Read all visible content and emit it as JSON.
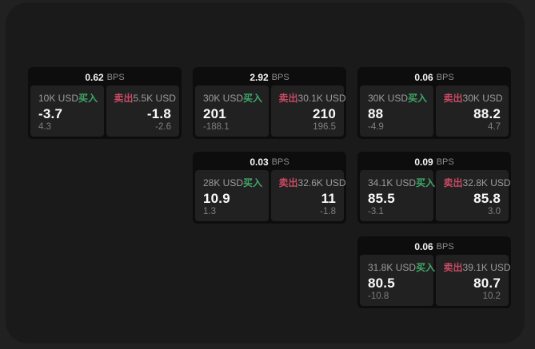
{
  "window": {
    "bg_outer": "#212121",
    "bg_panel": "#1a1a1a"
  },
  "labels": {
    "buy": "买入",
    "sell": "卖出",
    "bps_unit": "BPS"
  },
  "colors": {
    "buy_green": "#3fa868",
    "sell_red": "#c94b63",
    "card_bg": "#0d0d0d",
    "tile_bg": "#212121"
  },
  "cards": [
    {
      "bps": "0.62",
      "buy": {
        "amount": "10K USD",
        "price": "-3.7",
        "delta": "4.3"
      },
      "sell": {
        "amount": "5.5K USD",
        "price": "-1.8",
        "delta": "-2.6"
      }
    },
    {
      "bps": "2.92",
      "buy": {
        "amount": "30K USD",
        "price": "201",
        "delta": "-188.1"
      },
      "sell": {
        "amount": "30.1K USD",
        "price": "210",
        "delta": "196.5"
      }
    },
    {
      "bps": "0.06",
      "buy": {
        "amount": "30K USD",
        "price": "88",
        "delta": "-4.9"
      },
      "sell": {
        "amount": "30K USD",
        "price": "88.2",
        "delta": "4.7"
      }
    },
    {
      "bps": "0.03",
      "buy": {
        "amount": "28K USD",
        "price": "10.9",
        "delta": "1.3"
      },
      "sell": {
        "amount": "32.6K USD",
        "price": "11",
        "delta": "-1.8"
      }
    },
    {
      "bps": "0.09",
      "buy": {
        "amount": "34.1K USD",
        "price": "85.5",
        "delta": "-3.1"
      },
      "sell": {
        "amount": "32.8K USD",
        "price": "85.8",
        "delta": "3.0"
      }
    },
    {
      "bps": "0.06",
      "buy": {
        "amount": "31.8K USD",
        "price": "80.5",
        "delta": "-10.8"
      },
      "sell": {
        "amount": "39.1K USD",
        "price": "80.7",
        "delta": "10.2"
      }
    }
  ]
}
